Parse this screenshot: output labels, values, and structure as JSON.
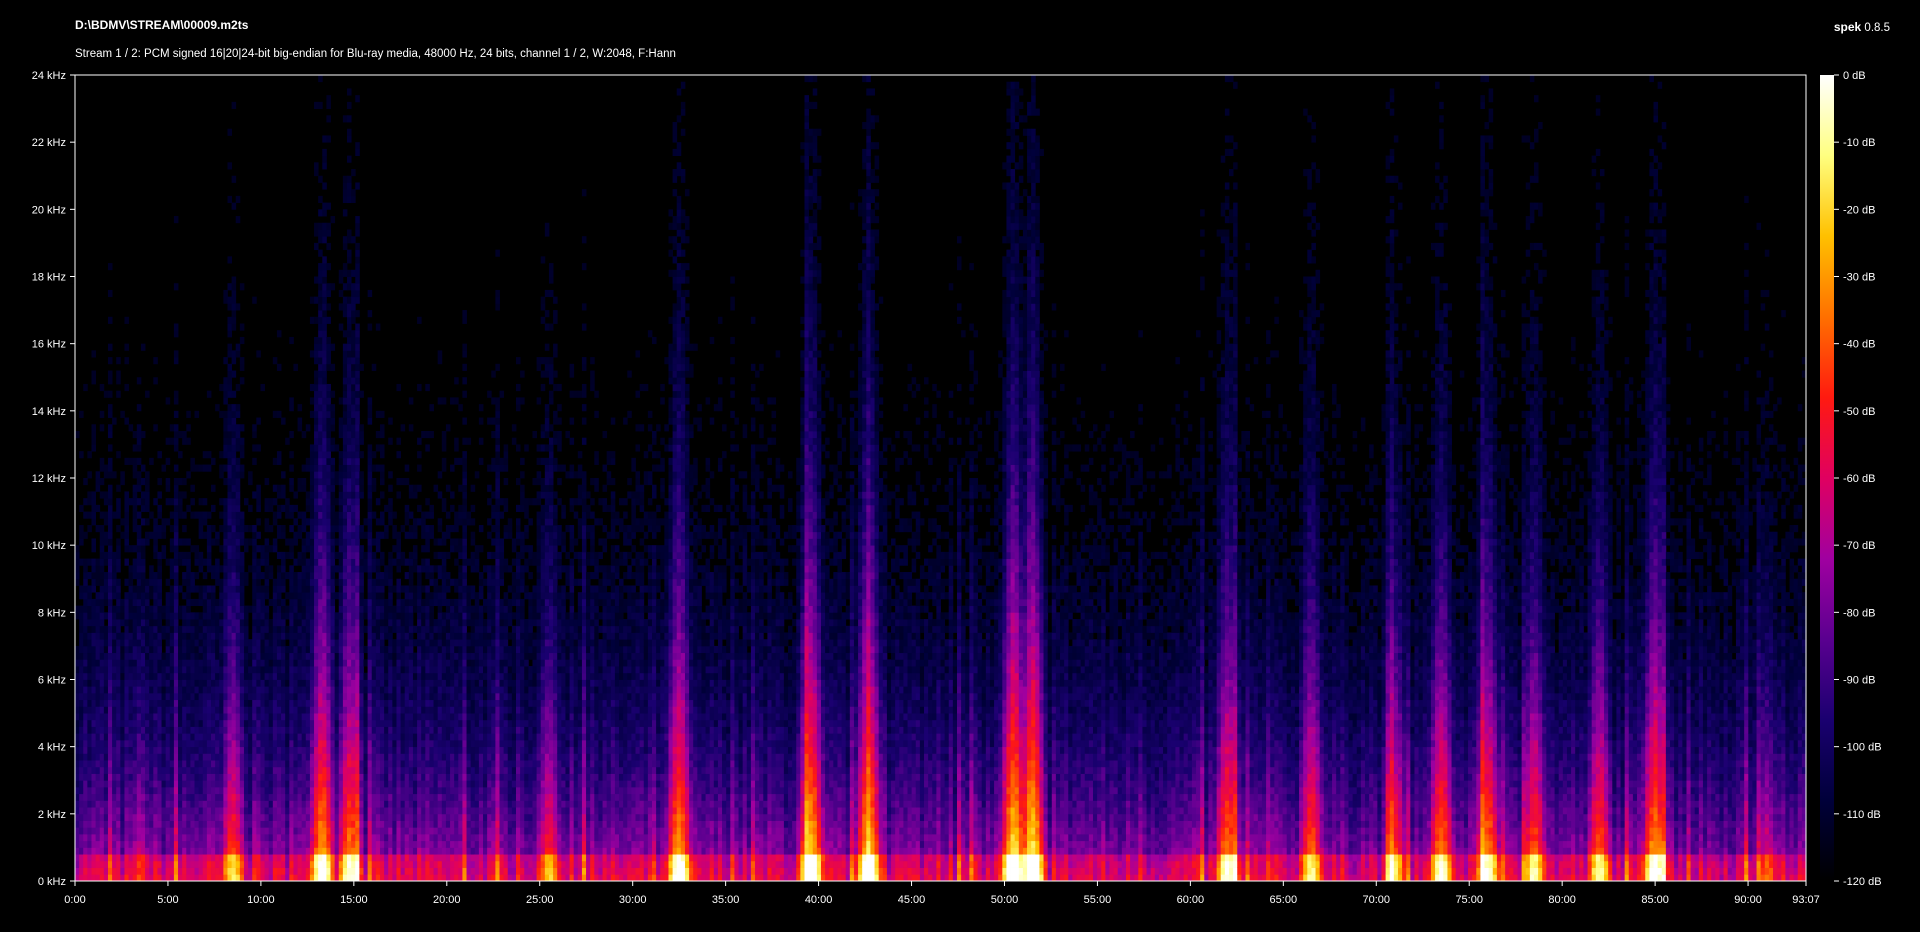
{
  "header": {
    "file_path": "D:\\BDMV\\STREAM\\00009.m2ts",
    "stream_info": "Stream 1 / 2: PCM signed 16|20|24-bit big-endian for Blu-ray media, 48000 Hz, 24 bits, channel 1 / 2, W:2048, F:Hann",
    "app_name": "spek",
    "app_version": "0.8.5"
  },
  "chart_data": {
    "type": "heatmap",
    "x_axis": {
      "unit": "time (min:sec)",
      "range": [
        "0:00",
        "93:07"
      ],
      "tick_labels": [
        "0:00",
        "5:00",
        "10:00",
        "15:00",
        "20:00",
        "25:00",
        "30:00",
        "35:00",
        "40:00",
        "45:00",
        "50:00",
        "55:00",
        "60:00",
        "65:00",
        "70:00",
        "75:00",
        "80:00",
        "85:00",
        "90:00",
        "93:07"
      ],
      "tick_minutes": [
        0,
        5,
        10,
        15,
        20,
        25,
        30,
        35,
        40,
        45,
        50,
        55,
        60,
        65,
        70,
        75,
        80,
        85,
        90,
        93.1167
      ],
      "max_minutes": 93.1167
    },
    "y_axis": {
      "unit": "kHz",
      "range": [
        0,
        24
      ],
      "tick_labels": [
        "0 kHz",
        "2 kHz",
        "4 kHz",
        "6 kHz",
        "8 kHz",
        "10 kHz",
        "12 kHz",
        "14 kHz",
        "16 kHz",
        "18 kHz",
        "20 kHz",
        "22 kHz",
        "24 kHz"
      ],
      "tick_values": [
        0,
        2,
        4,
        6,
        8,
        10,
        12,
        14,
        16,
        18,
        20,
        22,
        24
      ]
    },
    "color_scale": {
      "unit": "dB",
      "range": [
        -120,
        0
      ],
      "tick_labels": [
        "0 dB",
        "-10 dB",
        "-20 dB",
        "-30 dB",
        "-40 dB",
        "-50 dB",
        "-60 dB",
        "-70 dB",
        "-80 dB",
        "-90 dB",
        "-100 dB",
        "-110 dB",
        "-120 dB"
      ],
      "tick_values": [
        0,
        -10,
        -20,
        -30,
        -40,
        -50,
        -60,
        -70,
        -80,
        -90,
        -100,
        -110,
        -120
      ],
      "colors": [
        "#000000",
        "#00003a",
        "#1a0070",
        "#5a0090",
        "#a000a0",
        "#e00060",
        "#ff1a10",
        "#ff7000",
        "#ffc000",
        "#ffff80",
        "#ffffff"
      ]
    },
    "energy_bursts_minutes": [
      {
        "t": 3.5,
        "level": 0.55
      },
      {
        "t": 8.5,
        "level": 0.75
      },
      {
        "t": 13.3,
        "level": 0.9
      },
      {
        "t": 14.8,
        "level": 0.85
      },
      {
        "t": 25.5,
        "level": 0.7
      },
      {
        "t": 32.5,
        "level": 0.9
      },
      {
        "t": 39.6,
        "level": 0.95
      },
      {
        "t": 42.7,
        "level": 0.95
      },
      {
        "t": 50.5,
        "level": 1.0
      },
      {
        "t": 51.5,
        "level": 1.0
      },
      {
        "t": 62.0,
        "level": 0.85
      },
      {
        "t": 66.5,
        "level": 0.8
      },
      {
        "t": 71.0,
        "level": 0.75
      },
      {
        "t": 73.5,
        "level": 0.85
      },
      {
        "t": 76.0,
        "level": 0.85
      },
      {
        "t": 78.5,
        "level": 0.8
      },
      {
        "t": 82.0,
        "level": 0.8
      },
      {
        "t": 85.0,
        "level": 0.9
      },
      {
        "t": 91.0,
        "level": 0.6
      }
    ]
  }
}
